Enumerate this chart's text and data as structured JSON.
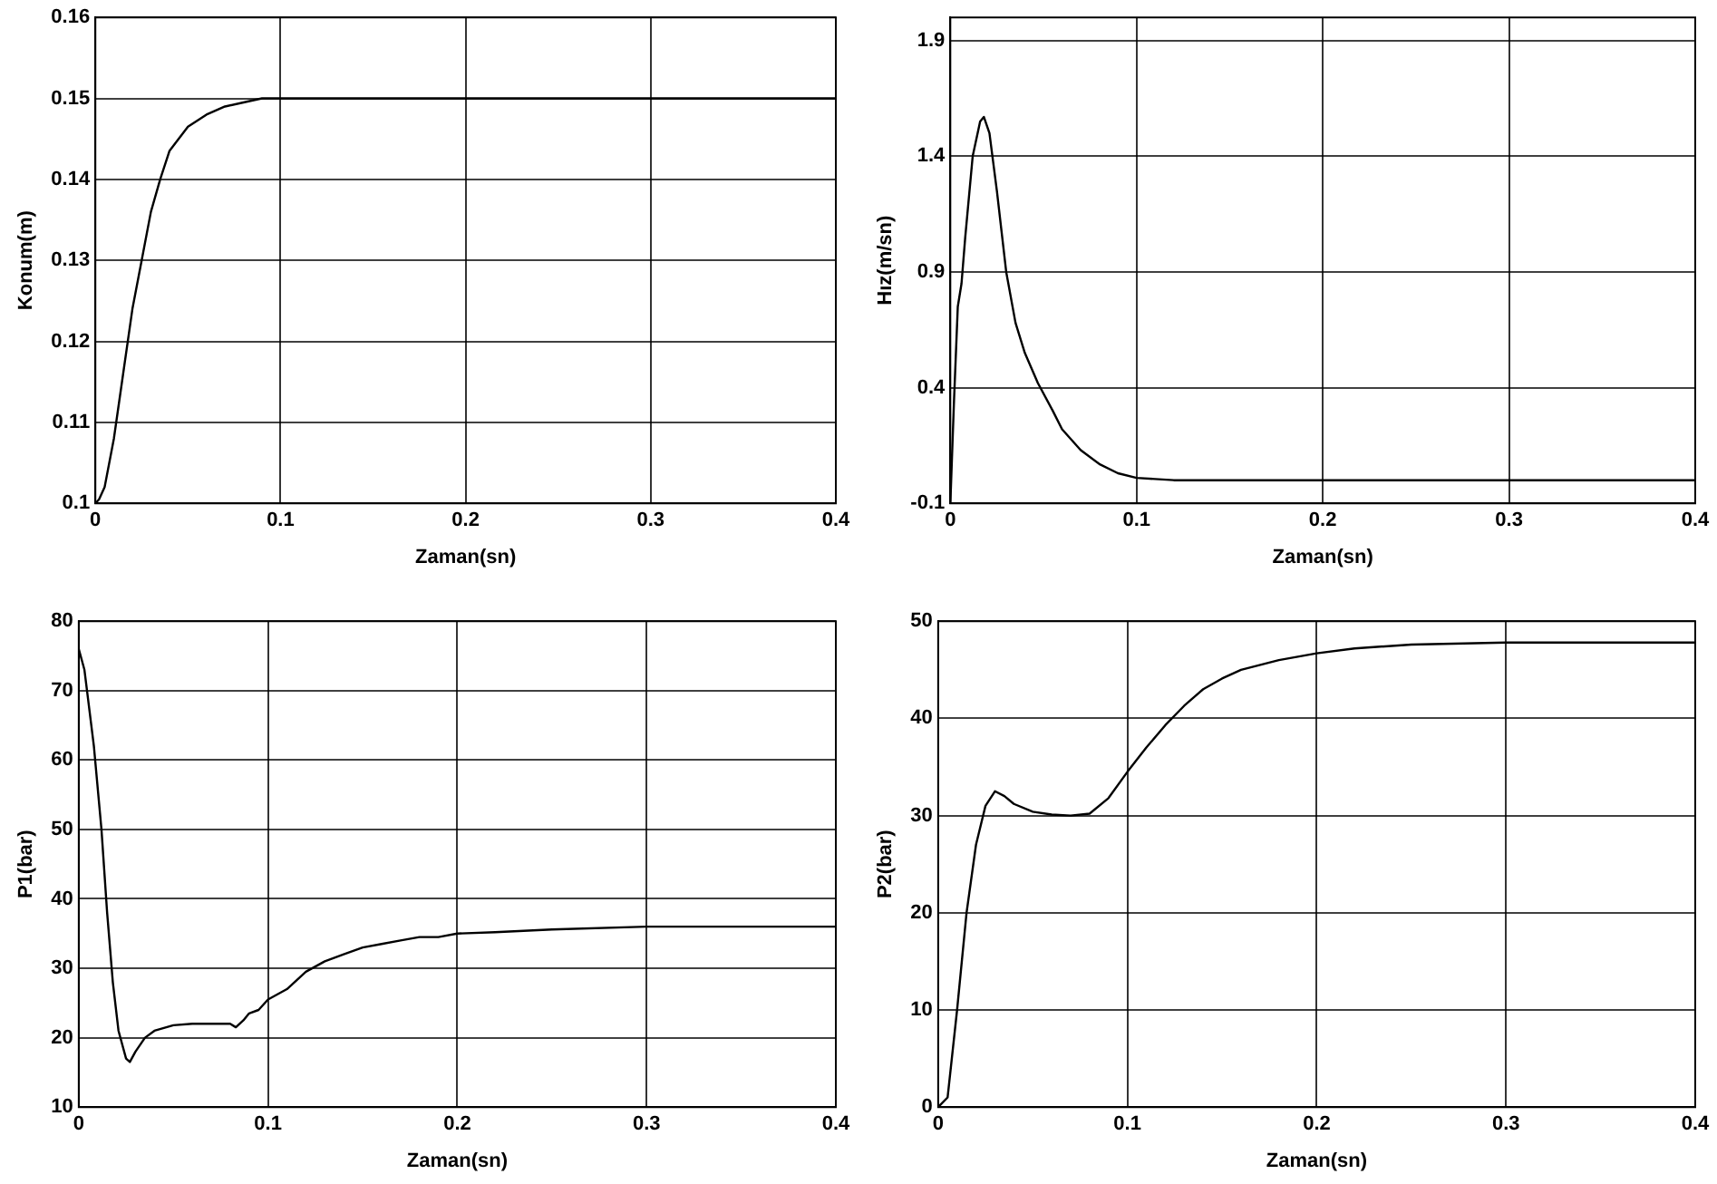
{
  "chart_data": [
    {
      "type": "line",
      "xlabel": "Zaman(sn)",
      "ylabel": "Konum(m)",
      "xlim": [
        0,
        0.4
      ],
      "xticks": [
        0,
        0.1,
        0.2,
        0.3,
        0.4
      ],
      "ylim": [
        0.1,
        0.16
      ],
      "yticks": [
        0.1,
        0.11,
        0.12,
        0.13,
        0.14,
        0.15,
        0.16
      ],
      "grid": true,
      "legend": false,
      "series": [
        {
          "color": "#000000",
          "x": [
            0,
            0.002,
            0.005,
            0.01,
            0.015,
            0.02,
            0.025,
            0.03,
            0.035,
            0.04,
            0.05,
            0.06,
            0.07,
            0.08,
            0.09,
            0.1,
            0.2,
            0.3,
            0.4
          ],
          "values": [
            0.1,
            0.1005,
            0.102,
            0.108,
            0.116,
            0.124,
            0.13,
            0.136,
            0.14,
            0.1435,
            0.1465,
            0.148,
            0.149,
            0.1495,
            0.15,
            0.15,
            0.15,
            0.15,
            0.15
          ]
        }
      ]
    },
    {
      "type": "line",
      "xlabel": "Zaman(sn)",
      "ylabel": "Hız(m/sn)",
      "xlim": [
        0,
        0.4
      ],
      "xticks": [
        0,
        0.1,
        0.2,
        0.3,
        0.4
      ],
      "ylim": [
        -0.1,
        2.0
      ],
      "yticks": [
        -0.1,
        0.4,
        0.9,
        1.4,
        1.9
      ],
      "grid": true,
      "legend": false,
      "series": [
        {
          "color": "#000000",
          "x": [
            0,
            0.002,
            0.004,
            0.006,
            0.008,
            0.012,
            0.016,
            0.018,
            0.021,
            0.025,
            0.03,
            0.035,
            0.04,
            0.047,
            0.055,
            0.06,
            0.07,
            0.08,
            0.09,
            0.1,
            0.12,
            0.2,
            0.3,
            0.4
          ],
          "values": [
            -0.1,
            0.35,
            0.75,
            0.85,
            1.05,
            1.4,
            1.55,
            1.57,
            1.5,
            1.25,
            0.9,
            0.68,
            0.55,
            0.42,
            0.3,
            0.22,
            0.13,
            0.07,
            0.03,
            0.01,
            0.0,
            0.0,
            0.0,
            0.0
          ]
        }
      ]
    },
    {
      "type": "line",
      "xlabel": "Zaman(sn)",
      "ylabel": "P1(bar)",
      "xlim": [
        0,
        0.4
      ],
      "xticks": [
        0,
        0.1,
        0.2,
        0.3,
        0.4
      ],
      "ylim": [
        10,
        80
      ],
      "yticks": [
        10,
        20,
        30,
        40,
        50,
        60,
        70,
        80
      ],
      "grid": true,
      "legend": false,
      "series": [
        {
          "color": "#000000",
          "x": [
            0,
            0.003,
            0.008,
            0.012,
            0.015,
            0.018,
            0.021,
            0.025,
            0.027,
            0.03,
            0.035,
            0.04,
            0.05,
            0.06,
            0.07,
            0.08,
            0.083,
            0.087,
            0.09,
            0.095,
            0.1,
            0.11,
            0.12,
            0.13,
            0.14,
            0.15,
            0.16,
            0.17,
            0.18,
            0.19,
            0.2,
            0.22,
            0.25,
            0.3,
            0.4
          ],
          "values": [
            76,
            73,
            62,
            50,
            38,
            28,
            21,
            17,
            16.5,
            18,
            20,
            21,
            21.8,
            22,
            22,
            22,
            21.5,
            22.5,
            23.5,
            24,
            25.5,
            27,
            29.5,
            31,
            32,
            33,
            33.5,
            34,
            34.5,
            34.5,
            35,
            35.2,
            35.6,
            36,
            36
          ]
        }
      ]
    },
    {
      "type": "line",
      "xlabel": "Zaman(sn)",
      "ylabel": "P2(bar)",
      "xlim": [
        0,
        0.4
      ],
      "xticks": [
        0,
        0.1,
        0.2,
        0.3,
        0.4
      ],
      "ylim": [
        0,
        50
      ],
      "yticks": [
        0,
        10,
        20,
        30,
        40,
        50
      ],
      "grid": true,
      "legend": false,
      "series": [
        {
          "color": "#000000",
          "x": [
            0,
            0.005,
            0.01,
            0.015,
            0.02,
            0.025,
            0.03,
            0.035,
            0.04,
            0.05,
            0.06,
            0.07,
            0.08,
            0.09,
            0.1,
            0.11,
            0.12,
            0.13,
            0.14,
            0.15,
            0.16,
            0.18,
            0.2,
            0.22,
            0.25,
            0.3,
            0.4
          ],
          "values": [
            0,
            1,
            10,
            20,
            27,
            31,
            32.5,
            32,
            31.2,
            30.4,
            30.1,
            30,
            30.2,
            31.8,
            34.5,
            37,
            39.3,
            41.3,
            43,
            44.1,
            45,
            46,
            46.7,
            47.2,
            47.6,
            47.8,
            47.8
          ]
        }
      ]
    }
  ]
}
